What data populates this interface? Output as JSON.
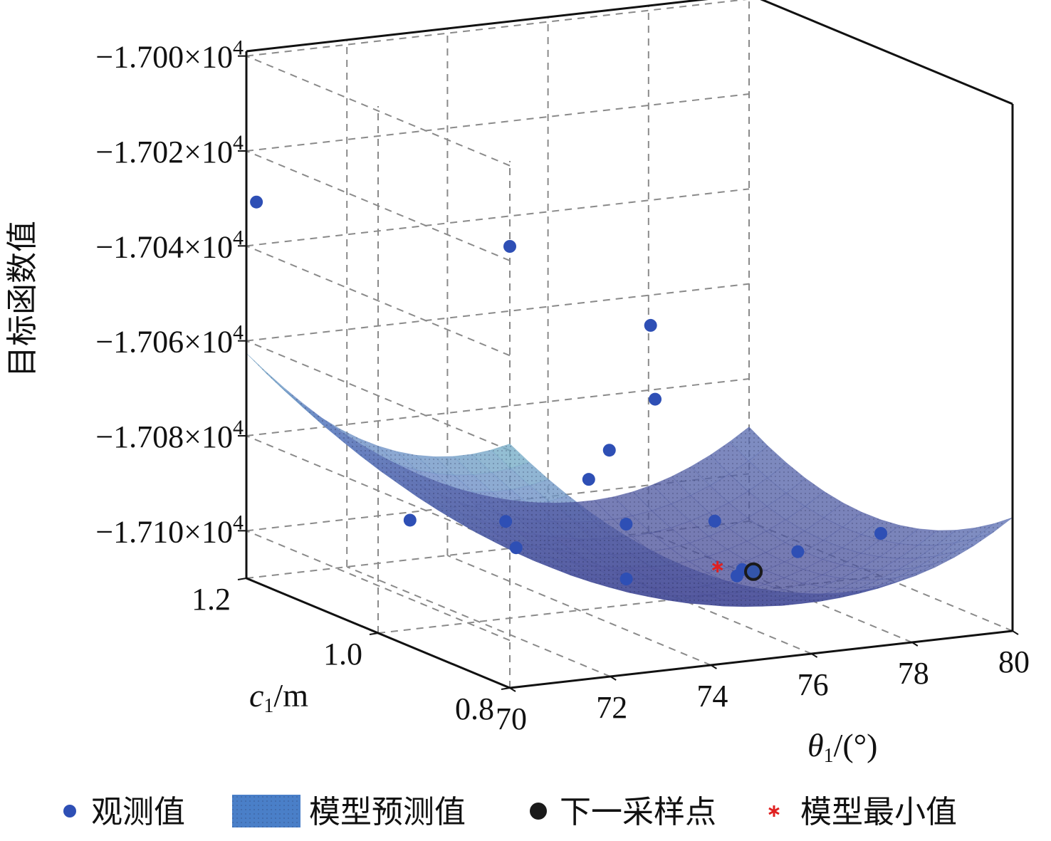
{
  "chart_data": {
    "type": "surface3d",
    "title": "",
    "zlabel": "目标函数值",
    "xlabel": {
      "var": "θ",
      "sub": "1",
      "unit": "/(°)"
    },
    "ylabel": {
      "var": "c",
      "sub": "1",
      "unit": "/m"
    },
    "xlim": [
      70,
      80
    ],
    "ylim": [
      0.8,
      1.2
    ],
    "zlim": [
      -17110,
      -16999
    ],
    "x_ticks": [
      "70",
      "72",
      "74",
      "76",
      "78",
      "80"
    ],
    "y_ticks": [
      "0.8",
      "1.0",
      "1.2"
    ],
    "z_ticks": [
      {
        "mant": "−1.700×10",
        "exp": "4"
      },
      {
        "mant": "−1.702×10",
        "exp": "4"
      },
      {
        "mant": "−1.704×10",
        "exp": "4"
      },
      {
        "mant": "−1.706×10",
        "exp": "4"
      },
      {
        "mant": "−1.708×10",
        "exp": "4"
      },
      {
        "mant": "−1.710×10",
        "exp": "4"
      }
    ],
    "z_tick_values": [
      -17000,
      -17020,
      -17040,
      -17060,
      -17080,
      -17100
    ],
    "grid": true,
    "colors": {
      "surface_low": "#5a5fa8",
      "surface_mid": "#7fc9c8",
      "surface_high": "#f0e060",
      "observed": "#2e4fb5",
      "minimum": "#e02020",
      "next": "#1a1a1a"
    },
    "series": [
      {
        "name": "观测值",
        "type": "scatter",
        "points": [
          {
            "x": 70.2,
            "y": 1.2,
            "z": -17031
          },
          {
            "x": 70.0,
            "y": 0.8,
            "z": -17017
          },
          {
            "x": 72.6,
            "y": 1.15,
            "z": -17098
          },
          {
            "x": 72.8,
            "y": 1.02,
            "z": -17091
          },
          {
            "x": 73.4,
            "y": 1.05,
            "z": -17099
          },
          {
            "x": 72.8,
            "y": 0.8,
            "z": -17037
          },
          {
            "x": 74.2,
            "y": 0.9,
            "z": -17060
          },
          {
            "x": 74.6,
            "y": 1.0,
            "z": -17077
          },
          {
            "x": 75.5,
            "y": 1.1,
            "z": -17090
          },
          {
            "x": 75.2,
            "y": 1.02,
            "z": -17106
          },
          {
            "x": 76.9,
            "y": 1.15,
            "z": -17104
          },
          {
            "x": 77.3,
            "y": 0.92,
            "z": -17097
          },
          {
            "x": 77.4,
            "y": 1.02,
            "z": -17108
          },
          {
            "x": 77.9,
            "y": 1.05,
            "z": -17109
          },
          {
            "x": 78.4,
            "y": 1.13,
            "z": -17104
          },
          {
            "x": 80.0,
            "y": 1.0,
            "z": -17101
          }
        ]
      },
      {
        "name": "模型预测值",
        "type": "surface",
        "model": {
          "x0": 76.8,
          "y0": 1.02,
          "z0": -17110,
          "ax": 0.85,
          "cx": 1.15,
          "by": 250
        }
      },
      {
        "name": "下一采样点",
        "type": "scatter",
        "points": [
          {
            "x": 75.5,
            "y": 0.85,
            "z": -17095
          }
        ]
      },
      {
        "name": "模型最小值",
        "type": "scatter",
        "points": [
          {
            "x": 77.8,
            "y": 1.08,
            "z": -17110
          }
        ]
      }
    ]
  }
}
